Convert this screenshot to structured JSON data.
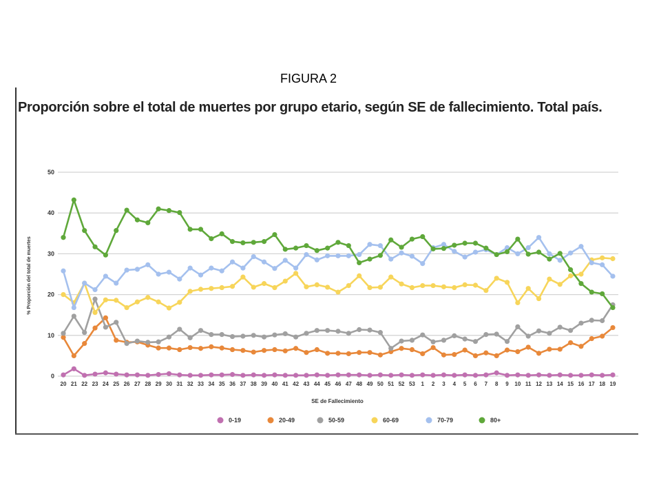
{
  "figure_label": "FIGURA 2",
  "chart_data": {
    "type": "line",
    "title": "Proporción sobre el total de muertes por grupo etario, según SE de fallecimiento. Total país.",
    "xlabel": "SE de Fallecimiento",
    "ylabel": "% Proporción del total de muertes",
    "ylim": [
      0,
      50
    ],
    "yticks": [
      0,
      10,
      20,
      30,
      40,
      50
    ],
    "grid": true,
    "legend_position": "bottom",
    "categories": [
      "20",
      "21",
      "22",
      "23",
      "24",
      "25",
      "26",
      "27",
      "28",
      "29",
      "30",
      "31",
      "32",
      "33",
      "34",
      "35",
      "36",
      "37",
      "38",
      "39",
      "40",
      "41",
      "42",
      "43",
      "44",
      "45",
      "46",
      "47",
      "48",
      "49",
      "50",
      "51",
      "52",
      "53",
      "1",
      "2",
      "3",
      "4",
      "5",
      "6",
      "7",
      "8",
      "9",
      "10",
      "11",
      "12",
      "13",
      "14",
      "15",
      "16",
      "17",
      "18",
      "19"
    ],
    "series": [
      {
        "name": "0-19",
        "color": "#c070b0",
        "values": [
          0.3,
          1.8,
          0.2,
          0.5,
          0.8,
          0.5,
          0.3,
          0.3,
          0.2,
          0.4,
          0.6,
          0.3,
          0.2,
          0.2,
          0.3,
          0.3,
          0.4,
          0.2,
          0.3,
          0.2,
          0.3,
          0.2,
          0.2,
          0.2,
          0.3,
          0.2,
          0.3,
          0.3,
          0.3,
          0.2,
          0.3,
          0.2,
          0.3,
          0.2,
          0.3,
          0.2,
          0.3,
          0.2,
          0.3,
          0.2,
          0.3,
          0.8,
          0.2,
          0.3,
          0.2,
          0.3,
          0.2,
          0.3,
          0.2,
          0.2,
          0.3,
          0.2,
          0.3
        ]
      },
      {
        "name": "20-49",
        "color": "#e8883a",
        "values": [
          9.5,
          5.0,
          8.0,
          11.8,
          14.3,
          8.8,
          8.3,
          8.4,
          7.6,
          6.9,
          6.9,
          6.5,
          7.0,
          6.8,
          7.2,
          6.9,
          6.5,
          6.3,
          5.9,
          6.3,
          6.5,
          6.2,
          6.8,
          5.8,
          6.5,
          5.6,
          5.6,
          5.5,
          5.8,
          5.8,
          5.2,
          6.0,
          6.8,
          6.5,
          5.5,
          7.0,
          5.2,
          5.3,
          6.4,
          5.0,
          5.7,
          5.0,
          6.4,
          6.0,
          7.1,
          5.6,
          6.6,
          6.6,
          8.2,
          7.3,
          9.2,
          9.8,
          11.9
        ]
      },
      {
        "name": "50-59",
        "color": "#a0a0a0",
        "values": [
          10.5,
          14.7,
          10.7,
          18.9,
          12.0,
          13.2,
          8.0,
          8.6,
          8.3,
          8.4,
          9.6,
          11.5,
          9.4,
          11.2,
          10.2,
          10.2,
          9.7,
          9.8,
          10.0,
          9.6,
          10.1,
          10.4,
          9.6,
          10.5,
          11.2,
          11.2,
          11.0,
          10.5,
          11.4,
          11.3,
          10.7,
          6.8,
          8.6,
          8.8,
          10.1,
          8.4,
          8.8,
          9.9,
          9.1,
          8.5,
          10.2,
          10.3,
          8.5,
          12.1,
          9.8,
          11.1,
          10.5,
          12.0,
          11.2,
          13.0,
          13.7,
          13.6,
          17.5
        ]
      },
      {
        "name": "60-69",
        "color": "#f7d55a",
        "values": [
          20.0,
          18.0,
          22.8,
          15.6,
          18.7,
          18.6,
          16.8,
          18.2,
          19.3,
          18.2,
          16.7,
          18.1,
          20.8,
          21.3,
          21.5,
          21.7,
          22.0,
          24.3,
          21.8,
          22.7,
          21.7,
          23.3,
          25.2,
          21.9,
          22.4,
          21.8,
          20.6,
          22.2,
          24.6,
          21.7,
          21.8,
          24.3,
          22.6,
          21.7,
          22.2,
          22.2,
          21.9,
          21.7,
          22.4,
          22.3,
          21.0,
          24.0,
          23.0,
          18.0,
          21.5,
          19.0,
          23.8,
          22.5,
          24.6,
          25.0,
          28.5,
          29.0,
          28.8
        ]
      },
      {
        "name": "70-79",
        "color": "#a4c0ee",
        "values": [
          25.8,
          16.8,
          22.8,
          21.2,
          24.5,
          22.8,
          26.0,
          26.2,
          27.3,
          25.0,
          25.5,
          23.8,
          26.5,
          24.8,
          26.5,
          25.8,
          28.0,
          26.5,
          29.3,
          28.0,
          26.4,
          28.4,
          26.5,
          29.8,
          28.5,
          29.5,
          29.5,
          29.5,
          29.8,
          32.3,
          32.0,
          28.7,
          30.2,
          29.4,
          27.6,
          31.5,
          32.3,
          30.6,
          29.2,
          30.4,
          31.0,
          29.8,
          31.5,
          30.0,
          31.5,
          34.0,
          30.0,
          28.4,
          30.2,
          31.8,
          27.8,
          27.3,
          24.5
        ]
      },
      {
        "name": "80+",
        "color": "#5fa83a",
        "values": [
          34.0,
          43.2,
          35.7,
          31.7,
          29.7,
          35.7,
          40.7,
          38.3,
          37.6,
          41.0,
          40.6,
          40.1,
          36.0,
          36.0,
          33.7,
          34.9,
          33.0,
          32.7,
          32.8,
          33.0,
          34.7,
          31.1,
          31.4,
          32.0,
          30.8,
          31.4,
          32.8,
          32.0,
          27.8,
          28.7,
          29.6,
          33.4,
          31.6,
          33.6,
          34.2,
          31.2,
          31.3,
          32.1,
          32.6,
          32.6,
          31.4,
          29.8,
          30.5,
          33.6,
          29.9,
          30.4,
          28.7,
          30.1,
          26.1,
          22.7,
          20.6,
          20.2,
          16.8
        ]
      }
    ]
  }
}
